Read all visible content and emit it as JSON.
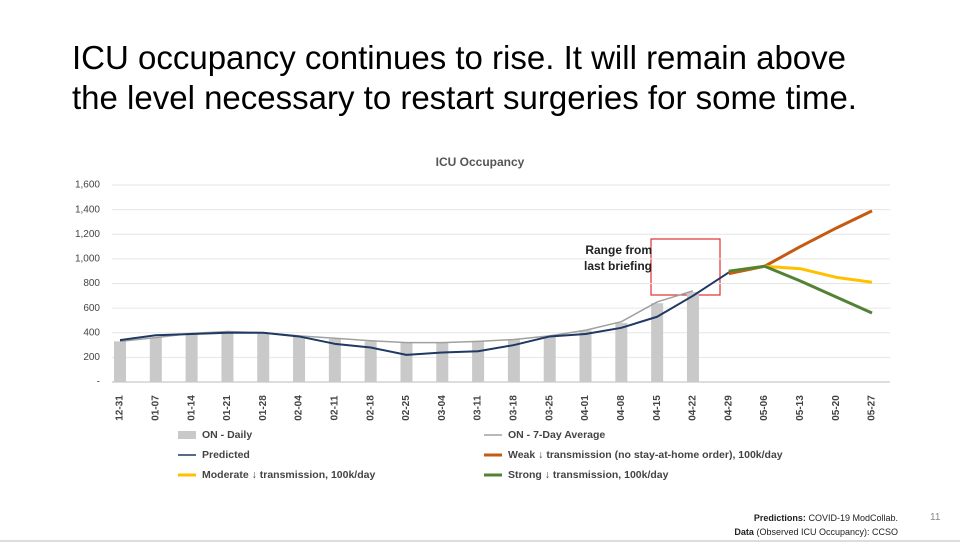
{
  "slide": {
    "title": "ICU occupancy continues to rise. It will remain above the level necessary to restart surgeries for some time.",
    "footer_predictions_label": "Predictions:",
    "footer_predictions": "COVID-19 ModCollab.",
    "footer_data_label": "Data",
    "footer_data": "(Observed ICU Occupancy): CCSO",
    "page_number": "11"
  },
  "chart_data": {
    "type": "line",
    "title": "ICU Occupancy",
    "annotation": "Range from last briefing",
    "categories": [
      "12-31",
      "01-07",
      "01-14",
      "01-21",
      "01-28",
      "02-04",
      "02-11",
      "02-18",
      "02-25",
      "03-04",
      "03-11",
      "03-18",
      "03-25",
      "04-01",
      "04-08",
      "04-15",
      "04-22",
      "04-29",
      "05-06",
      "05-13",
      "05-20",
      "05-27"
    ],
    "series": [
      {
        "name": "ON - Daily",
        "type": "bar",
        "color": "#c9c9c9",
        "values": [
          330,
          360,
          400,
          410,
          400,
          370,
          350,
          330,
          320,
          320,
          330,
          345,
          370,
          420,
          480,
          640,
          730,
          null,
          null,
          null,
          null,
          null
        ]
      },
      {
        "name": "ON - 7-Day Average",
        "type": "line",
        "color": "#a0a0a0",
        "values": [
          330,
          360,
          395,
          410,
          400,
          375,
          355,
          335,
          320,
          320,
          330,
          345,
          375,
          420,
          490,
          650,
          740,
          null,
          null,
          null,
          null,
          null
        ]
      },
      {
        "name": "Predicted",
        "type": "line",
        "color": "#1f3864",
        "values": [
          340,
          380,
          390,
          400,
          400,
          370,
          310,
          280,
          220,
          240,
          250,
          300,
          370,
          390,
          440,
          530,
          700,
          890,
          940,
          null,
          null,
          null
        ]
      },
      {
        "name": "Weak ↓ transmission (no stay-at-home order), 100k/day",
        "type": "line",
        "color": "#c55a11",
        "values": [
          null,
          null,
          null,
          null,
          null,
          null,
          null,
          null,
          null,
          null,
          null,
          null,
          null,
          null,
          null,
          null,
          null,
          880,
          940,
          1100,
          1250,
          1390
        ]
      },
      {
        "name": "Moderate ↓ transmission, 100k/day",
        "type": "line",
        "color": "#ffc000",
        "values": [
          null,
          null,
          null,
          null,
          null,
          null,
          null,
          null,
          null,
          null,
          null,
          null,
          null,
          null,
          null,
          null,
          null,
          900,
          940,
          920,
          850,
          810
        ]
      },
      {
        "name": "Strong ↓ transmission, 100k/day",
        "type": "line",
        "color": "#548235",
        "values": [
          null,
          null,
          null,
          null,
          null,
          null,
          null,
          null,
          null,
          null,
          null,
          null,
          null,
          null,
          null,
          null,
          null,
          900,
          940,
          820,
          690,
          560
        ]
      }
    ],
    "ylim": [
      0,
      1600
    ],
    "yticks": [
      {
        "value": 0,
        "label": "-"
      },
      {
        "value": 200,
        "label": "200"
      },
      {
        "value": 400,
        "label": "400"
      },
      {
        "value": 600,
        "label": "600"
      },
      {
        "value": 800,
        "label": "800"
      },
      {
        "value": 1000,
        "label": "1,000"
      },
      {
        "value": 1200,
        "label": "1,200"
      },
      {
        "value": 1400,
        "label": "1,400"
      },
      {
        "value": 1600,
        "label": "1,600"
      }
    ],
    "grid": true
  }
}
